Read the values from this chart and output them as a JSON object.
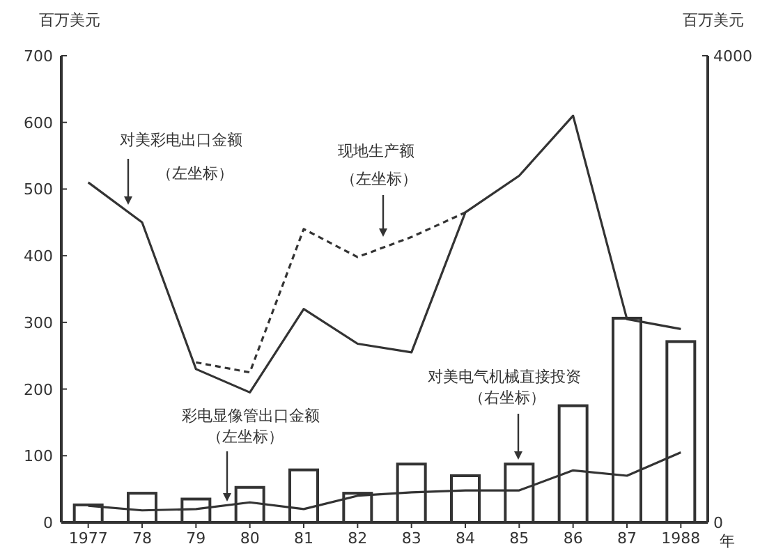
{
  "chart_data": {
    "type": "line",
    "ylabel": "百万美元",
    "y2label": "百万美元",
    "xlabel": "年",
    "categories": [
      "1977",
      "78",
      "79",
      "80",
      "81",
      "82",
      "83",
      "84",
      "85",
      "86",
      "87",
      "1988"
    ],
    "series": [
      {
        "type": "bar",
        "axis": "y2",
        "color": "#333333",
        "values": [
          150,
          250,
          200,
          300,
          450,
          250,
          500,
          400,
          500,
          1000,
          1750,
          1550
        ]
      },
      {
        "color": "#333333",
        "line_style": "solid",
        "values": [
          510,
          450,
          230,
          195,
          320,
          268,
          255,
          465,
          520,
          610,
          305,
          290
        ]
      },
      {
        "color": "#333333",
        "line_style": "dashed",
        "values": [
          null,
          null,
          240,
          225,
          440,
          398,
          428,
          465,
          null,
          null,
          null,
          null
        ]
      },
      {
        "color": "#333333",
        "line_style": "solid",
        "values": [
          25,
          18,
          20,
          30,
          20,
          40,
          45,
          48,
          48,
          78,
          70,
          105
        ]
      }
    ],
    "ylim": [
      0,
      700
    ],
    "yticks": [
      0,
      100,
      200,
      300,
      400,
      500,
      600,
      700
    ],
    "y2lim": [
      0,
      4000
    ],
    "y2ticks": [
      0,
      4000
    ],
    "grid": false,
    "marker": "none",
    "annotations": [
      "对美彩电出口金额",
      "（左坐标）",
      "现地生产额",
      "（左坐标）",
      "彩电显像管出口金额",
      "（左坐标）",
      "对美电气机械直接投资",
      "（右坐标）"
    ]
  }
}
